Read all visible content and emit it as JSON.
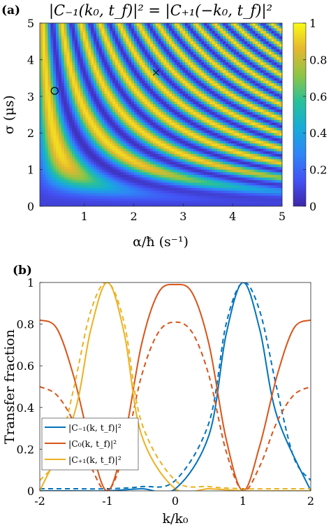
{
  "chart_data": [
    {
      "type": "heatmap",
      "panel_label": "(a)",
      "title": "|C₋₁(k₀, t_f)|² = |C₊₁(−k₀, t_f)|²",
      "xlabel": "α/ħ (s⁻¹)",
      "ylabel": "σ (μs)",
      "xlim": [
        0.1,
        5
      ],
      "ylim": [
        0,
        5
      ],
      "xticks": [
        "1",
        "2",
        "3",
        "4",
        "5"
      ],
      "yticks": [
        "0",
        "1",
        "2",
        "3",
        "4",
        "5"
      ],
      "colorbar": {
        "range": [
          0,
          1
        ],
        "ticks": [
          "0",
          "0.2",
          "0.4",
          "0.6",
          "0.8",
          "1"
        ]
      },
      "markers": [
        {
          "shape": "circle",
          "x": 0.4,
          "y": 3.15
        },
        {
          "shape": "cross",
          "x": 2.45,
          "y": 3.65
        }
      ]
    },
    {
      "type": "line",
      "panel_label": "(b)",
      "xlabel": "k/k₀",
      "ylabel": "Transfer fraction",
      "xlim": [
        -2,
        2
      ],
      "ylim": [
        0,
        1
      ],
      "xticks": [
        "-2",
        "-1",
        "0",
        "1",
        "2"
      ],
      "yticks": [
        "0",
        "0.2",
        "0.4",
        "0.6",
        "0.8",
        "1"
      ],
      "legend_position": "lower-left",
      "series": [
        {
          "name": "|C₋₁(k, t_f)|²",
          "color": "#0072bd",
          "style": "solid",
          "x": [
            -2,
            -1.5,
            -1,
            -0.5,
            0,
            0.5,
            0.75,
            1,
            1.25,
            1.5,
            2
          ],
          "y": [
            0,
            0,
            0,
            0.01,
            0.01,
            0.27,
            0.75,
            1.0,
            0.77,
            0.36,
            0.0
          ]
        },
        {
          "name": "|C₋₁(k, t_f)|² dashed",
          "color": "#0072bd",
          "style": "dashed",
          "x": [
            -2,
            -1.5,
            -1,
            -0.5,
            0,
            0.5,
            0.75,
            1,
            1.25,
            1.5,
            1.75,
            2
          ],
          "y": [
            0.01,
            0.01,
            0.01,
            0.02,
            0.05,
            0.33,
            0.8,
            1.0,
            0.86,
            0.49,
            0.16,
            0.05
          ]
        },
        {
          "name": "|C₀(k, t_f)|²",
          "color": "#d95319",
          "style": "solid",
          "x": [
            -2,
            -1.75,
            -1.5,
            -1.25,
            -1,
            -0.75,
            -0.5,
            -0.25,
            0,
            0.25,
            0.5,
            0.75,
            1,
            1.25,
            1.5,
            1.75,
            2
          ],
          "y": [
            0.82,
            0.78,
            0.55,
            0.22,
            0.0,
            0.25,
            0.7,
            0.95,
            0.99,
            0.95,
            0.7,
            0.25,
            0.0,
            0.22,
            0.55,
            0.78,
            0.82
          ]
        },
        {
          "name": "|C₀(k, t_f)|² dashed",
          "color": "#d95319",
          "style": "dashed",
          "x": [
            -2,
            -1.75,
            -1.5,
            -1.25,
            -1,
            -0.75,
            -0.5,
            -0.25,
            0,
            0.25,
            0.5,
            0.75,
            1,
            1.25,
            1.5,
            1.75,
            2
          ],
          "y": [
            0.5,
            0.46,
            0.33,
            0.12,
            0.0,
            0.19,
            0.55,
            0.76,
            0.81,
            0.76,
            0.55,
            0.19,
            0.0,
            0.12,
            0.33,
            0.46,
            0.5
          ]
        },
        {
          "name": "|C₊₁(k, t_f)|²",
          "color": "#edb120",
          "style": "solid",
          "x": [
            -2,
            -1.5,
            -1.25,
            -1,
            -0.75,
            -0.5,
            0,
            0.5,
            1,
            1.5,
            2
          ],
          "y": [
            0.0,
            0.36,
            0.77,
            1.0,
            0.75,
            0.27,
            0.01,
            0.01,
            0,
            0,
            0
          ]
        },
        {
          "name": "|C₊₁(k, t_f)|² dashed",
          "color": "#edb120",
          "style": "dashed",
          "x": [
            -2,
            -1.75,
            -1.5,
            -1.25,
            -1,
            -0.75,
            -0.5,
            0,
            0.5,
            1,
            1.5,
            2
          ],
          "y": [
            0.05,
            0.16,
            0.49,
            0.86,
            1.0,
            0.8,
            0.33,
            0.05,
            0.02,
            0.01,
            0.01,
            0.01
          ]
        }
      ]
    }
  ]
}
